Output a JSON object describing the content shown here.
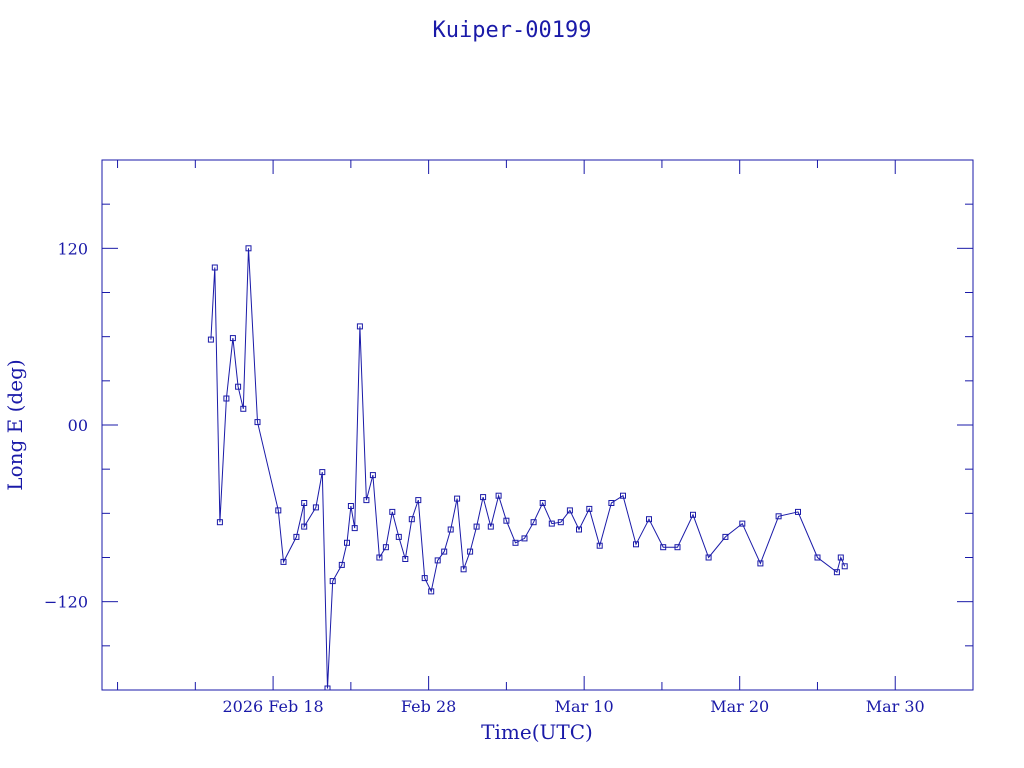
{
  "colors": {
    "ink": "#1a1aa8",
    "background": "#ffffff"
  },
  "chart_data": {
    "type": "line",
    "title": "Kuiper-00199",
    "xlabel": "Time(UTC)",
    "ylabel": "Long E (deg)",
    "x_is_date": true,
    "xlim": [
      "2026-02-07",
      "2026-04-04"
    ],
    "ylim": [
      -180,
      180
    ],
    "x_ticks": [
      {
        "date": "2026-02-18",
        "label": "2026 Feb 18"
      },
      {
        "date": "2026-02-28",
        "label": "Feb 28"
      },
      {
        "date": "2026-03-10",
        "label": "Mar 10"
      },
      {
        "date": "2026-03-20",
        "label": "Mar 20"
      },
      {
        "date": "2026-03-30",
        "label": "Mar 30"
      }
    ],
    "y_ticks": [
      {
        "value": -120,
        "label": "−120"
      },
      {
        "value": 0,
        "label": "00"
      },
      {
        "value": 120,
        "label": "120"
      }
    ],
    "marker": "square",
    "grid": false,
    "series": [
      {
        "x": [
          "2026-02-14T00:00",
          "2026-02-14T06:00",
          "2026-02-14T14:00",
          "2026-02-15T00:00",
          "2026-02-15T10:00",
          "2026-02-15T18:00",
          "2026-02-16T02:00",
          "2026-02-16T10:00",
          "2026-02-17T00:00",
          "2026-02-18T08:00",
          "2026-02-18T16:00",
          "2026-02-19T12:00",
          "2026-02-20T00:00",
          "2026-02-20T00:00",
          "2026-02-20T18:00",
          "2026-02-21T04:00",
          "2026-02-21T12:00",
          "2026-02-21T20:00",
          "2026-02-22T10:00",
          "2026-02-22T18:00",
          "2026-02-23T00:00",
          "2026-02-23T06:00",
          "2026-02-23T14:00",
          "2026-02-24T00:00",
          "2026-02-24T10:00",
          "2026-02-24T20:00",
          "2026-02-25T06:00",
          "2026-02-25T16:00",
          "2026-02-26T02:00",
          "2026-02-26T12:00",
          "2026-02-26T22:00",
          "2026-02-27T08:00",
          "2026-02-27T18:00",
          "2026-02-28T04:00",
          "2026-02-28T14:00",
          "2026-03-01T00:00",
          "2026-03-01T10:00",
          "2026-03-01T20:00",
          "2026-03-02T06:00",
          "2026-03-02T16:00",
          "2026-03-03T02:00",
          "2026-03-03T12:00",
          "2026-03-04T00:00",
          "2026-03-04T12:00",
          "2026-03-05T00:00",
          "2026-03-05T14:00",
          "2026-03-06T04:00",
          "2026-03-06T18:00",
          "2026-03-07T08:00",
          "2026-03-07T22:00",
          "2026-03-08T12:00",
          "2026-03-09T02:00",
          "2026-03-09T16:00",
          "2026-03-10T08:00",
          "2026-03-11T00:00",
          "2026-03-11T18:00",
          "2026-03-12T12:00",
          "2026-03-13T08:00",
          "2026-03-14T04:00",
          "2026-03-15T02:00",
          "2026-03-16T00:00",
          "2026-03-17T00:00",
          "2026-03-18T00:00",
          "2026-03-19T02:00",
          "2026-03-20T04:00",
          "2026-03-21T08:00",
          "2026-03-22T12:00",
          "2026-03-23T18:00",
          "2026-03-25T00:00",
          "2026-03-26T06:00",
          "2026-03-26T12:00",
          "2026-03-26T18:00"
        ],
        "y": [
          58,
          107,
          -66,
          18,
          59,
          26,
          11,
          120,
          2,
          -58,
          -93,
          -76,
          -53,
          -69,
          -56,
          -32,
          -179,
          -106,
          -95,
          -80,
          -55,
          -70,
          67,
          -51,
          -34,
          -90,
          -83,
          -59,
          -76,
          -91,
          -64,
          -51,
          -104,
          -113,
          -92,
          -86,
          -71,
          -50,
          -98,
          -86,
          -69,
          -49,
          -69,
          -48,
          -65,
          -80,
          -77,
          -66,
          -53,
          -67,
          -66,
          -58,
          -71,
          -57,
          -82,
          -53,
          -48,
          -81,
          -64,
          -83,
          -83,
          -61,
          -90,
          -76,
          -67,
          -94,
          -62,
          -59,
          -90,
          -100,
          -90,
          -96
        ]
      }
    ]
  }
}
